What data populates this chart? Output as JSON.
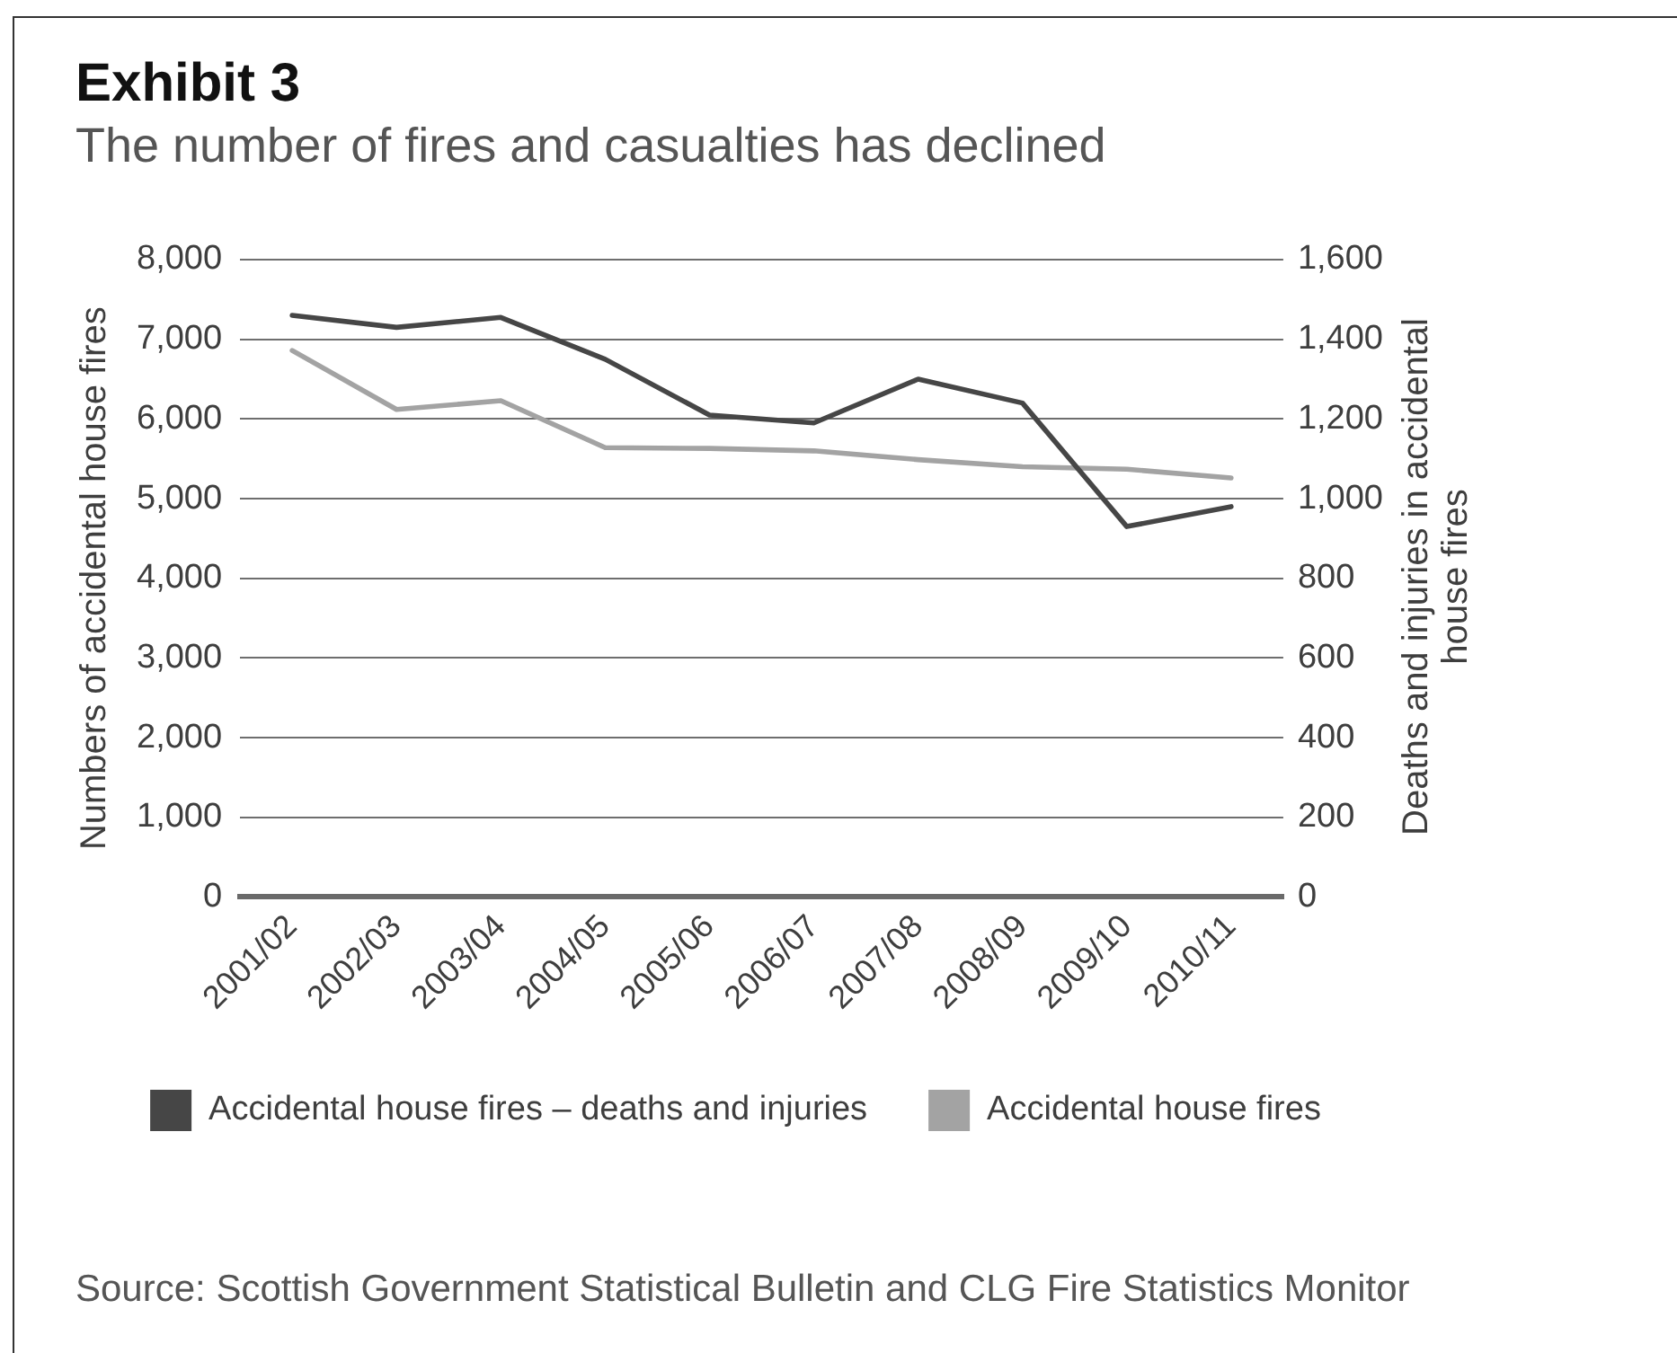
{
  "chart_data": {
    "type": "line",
    "title": "Exhibit 3",
    "subtitle": "The number of fires and casualties has declined",
    "ylabel": "Numbers of accidental house fires",
    "y2label": "Deaths and injuries in accidental house fires",
    "annotations": [
      "Source: Scottish Government Statistical Bulletin and CLG Fire Statistics Monitor"
    ],
    "categories": [
      "2001/02",
      "2002/03",
      "2003/04",
      "2004/05",
      "2005/06",
      "2006/07",
      "2007/08",
      "2008/09",
      "2009/10",
      "2010/11"
    ],
    "series": [
      {
        "name": "Accidental house fires – deaths and injuries",
        "color": "#464646",
        "axis": "y2",
        "values": [
          1460,
          1430,
          1455,
          1350,
          1210,
          1190,
          1300,
          1240,
          930,
          980
        ]
      },
      {
        "name": "Accidental house fires",
        "color": "#a3a3a3",
        "values": [
          6860,
          6120,
          6230,
          5640,
          5630,
          5600,
          5490,
          5400,
          5370,
          5260
        ]
      }
    ],
    "ylim": [
      0,
      8000
    ],
    "yticks": [
      0,
      {
        "value": 1000,
        "label": "1,000"
      },
      {
        "value": 2000,
        "label": "2,000"
      },
      {
        "value": 3000,
        "label": "3,000"
      },
      {
        "value": 4000,
        "label": "4,000"
      },
      {
        "value": 5000,
        "label": "5,000"
      },
      {
        "value": 6000,
        "label": "6,000"
      },
      {
        "value": 7000,
        "label": "7,000"
      },
      {
        "value": 8000,
        "label": "8,000"
      }
    ],
    "y2lim": [
      0,
      1600
    ],
    "y2ticks": [
      0,
      200,
      400,
      600,
      800,
      {
        "value": 1000,
        "label": "1,000"
      },
      {
        "value": 1200,
        "label": "1,200"
      },
      {
        "value": 1400,
        "label": "1,400"
      },
      {
        "value": 1600,
        "label": "1,600"
      }
    ],
    "grid": "y",
    "legend": "bottom",
    "marker": "none",
    "line_style": "solid"
  }
}
